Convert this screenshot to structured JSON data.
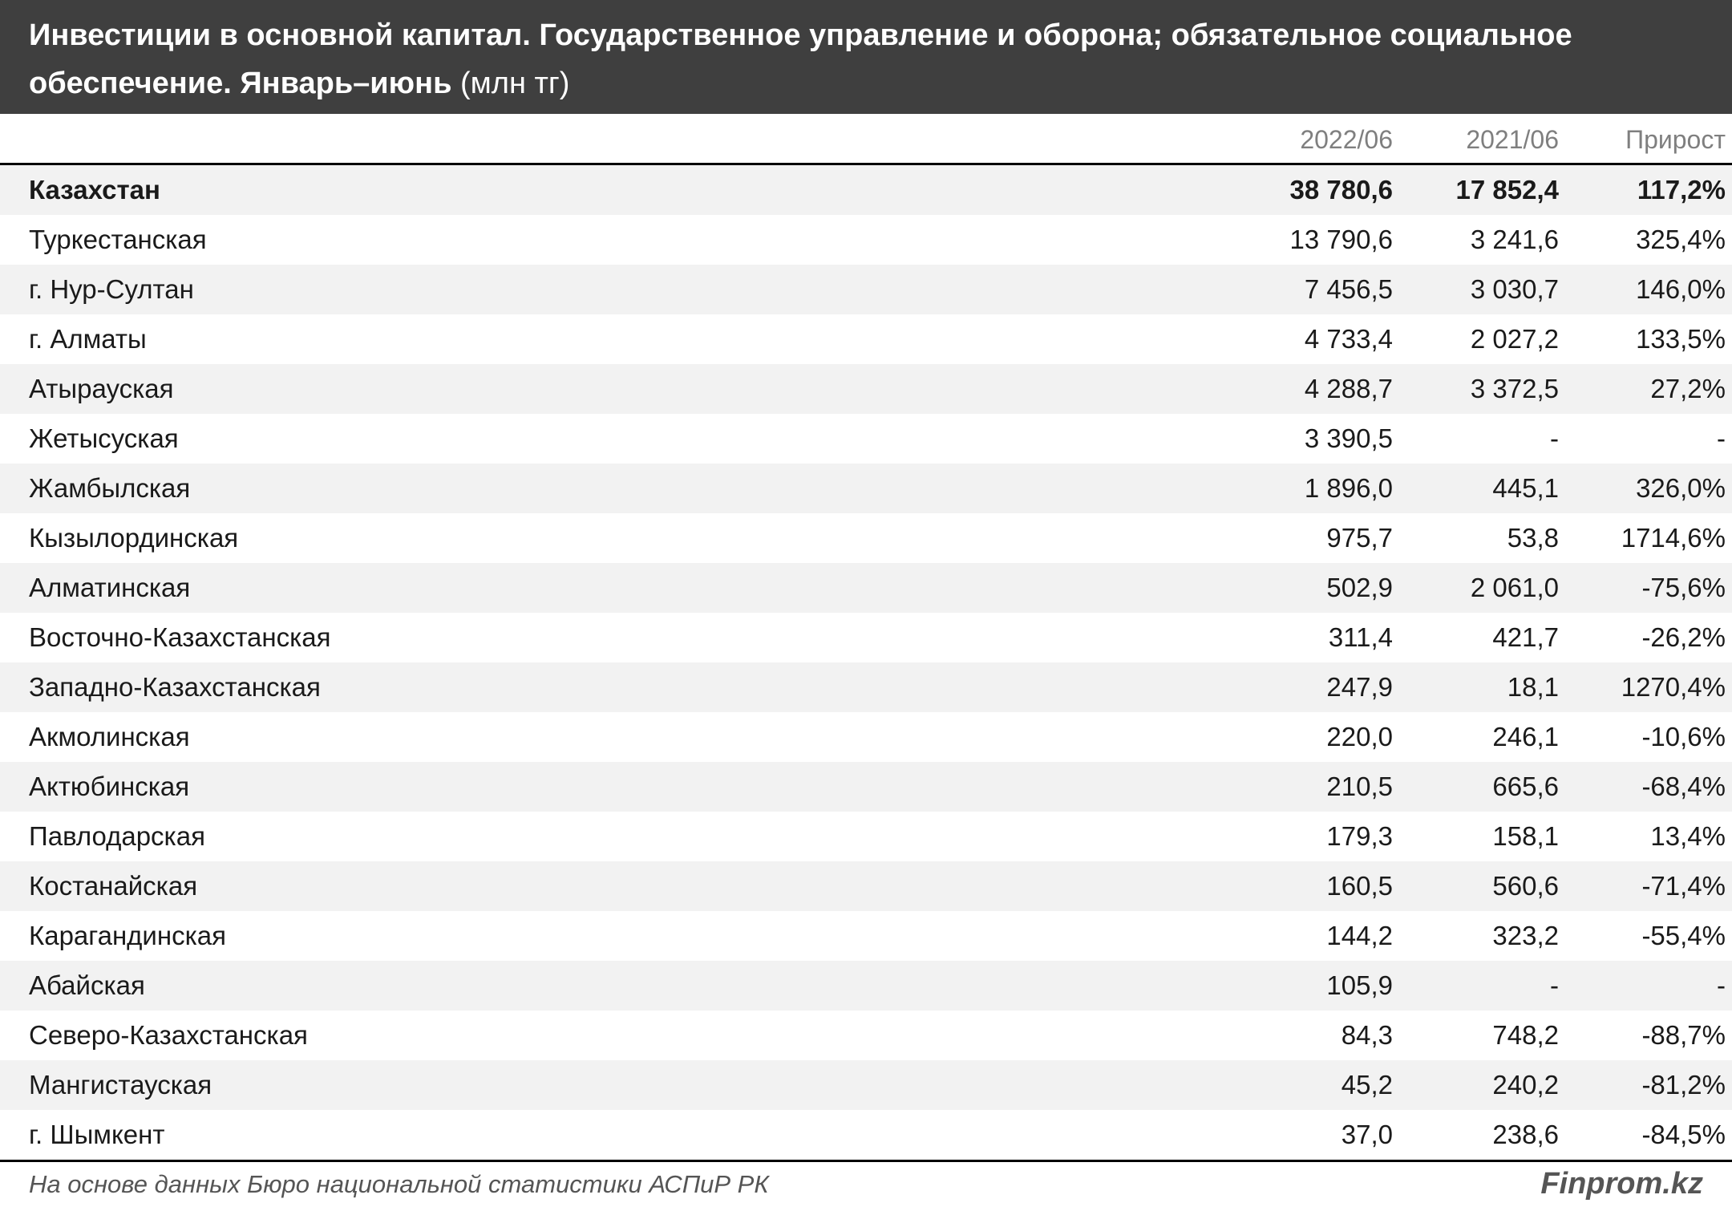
{
  "chart_data": {
    "type": "table",
    "title": "Инвестиции в основной капитал. Государственное управление и оборона; обязательное социальное обеспечение. Январь–июнь",
    "unit": "(млн тг)",
    "columns": [
      "2022/06",
      "2021/06",
      "Прирост"
    ],
    "rows": [
      {
        "name": "Казахстан",
        "v2022": "38 780,6",
        "v2021": "17 852,4",
        "growth": "117,2%"
      },
      {
        "name": "Туркестанская",
        "v2022": "13 790,6",
        "v2021": "3 241,6",
        "growth": "325,4%"
      },
      {
        "name": "г. Нур-Султан",
        "v2022": "7 456,5",
        "v2021": "3 030,7",
        "growth": "146,0%"
      },
      {
        "name": "г. Алматы",
        "v2022": "4 733,4",
        "v2021": "2 027,2",
        "growth": "133,5%"
      },
      {
        "name": "Атырауская",
        "v2022": "4 288,7",
        "v2021": "3 372,5",
        "growth": "27,2%"
      },
      {
        "name": "Жетысуская",
        "v2022": "3 390,5",
        "v2021": "-",
        "growth": "-"
      },
      {
        "name": "Жамбылская",
        "v2022": "1 896,0",
        "v2021": "445,1",
        "growth": "326,0%"
      },
      {
        "name": "Кызылординская",
        "v2022": "975,7",
        "v2021": "53,8",
        "growth": "1714,6%"
      },
      {
        "name": "Алматинская",
        "v2022": "502,9",
        "v2021": "2 061,0",
        "growth": "-75,6%"
      },
      {
        "name": "Восточно-Казахстанская",
        "v2022": "311,4",
        "v2021": "421,7",
        "growth": "-26,2%"
      },
      {
        "name": "Западно-Казахстанская",
        "v2022": "247,9",
        "v2021": "18,1",
        "growth": "1270,4%"
      },
      {
        "name": "Акмолинская",
        "v2022": "220,0",
        "v2021": "246,1",
        "growth": "-10,6%"
      },
      {
        "name": "Актюбинская",
        "v2022": "210,5",
        "v2021": "665,6",
        "growth": "-68,4%"
      },
      {
        "name": "Павлодарская",
        "v2022": "179,3",
        "v2021": "158,1",
        "growth": "13,4%"
      },
      {
        "name": "Костанайская",
        "v2022": "160,5",
        "v2021": "560,6",
        "growth": "-71,4%"
      },
      {
        "name": "Карагандинская",
        "v2022": "144,2",
        "v2021": "323,2",
        "growth": "-55,4%"
      },
      {
        "name": "Абайская",
        "v2022": "105,9",
        "v2021": "-",
        "growth": "-"
      },
      {
        "name": "Северо-Казахстанская",
        "v2022": "84,3",
        "v2021": "748,2",
        "growth": "-88,7%"
      },
      {
        "name": "Мангистауская",
        "v2022": "45,2",
        "v2021": "240,2",
        "growth": "-81,2%"
      },
      {
        "name": "г. Шымкент",
        "v2022": "37,0",
        "v2021": "238,6",
        "growth": "-84,5%"
      }
    ]
  },
  "footer": {
    "source": "На основе данных Бюро национальной статистики АСПиР РК",
    "brand": "Finprom.kz"
  },
  "colors": {
    "title_bg": "#3f3f3f",
    "row_alt": "#f2f2f2",
    "header_text": "#7f7f7f"
  }
}
